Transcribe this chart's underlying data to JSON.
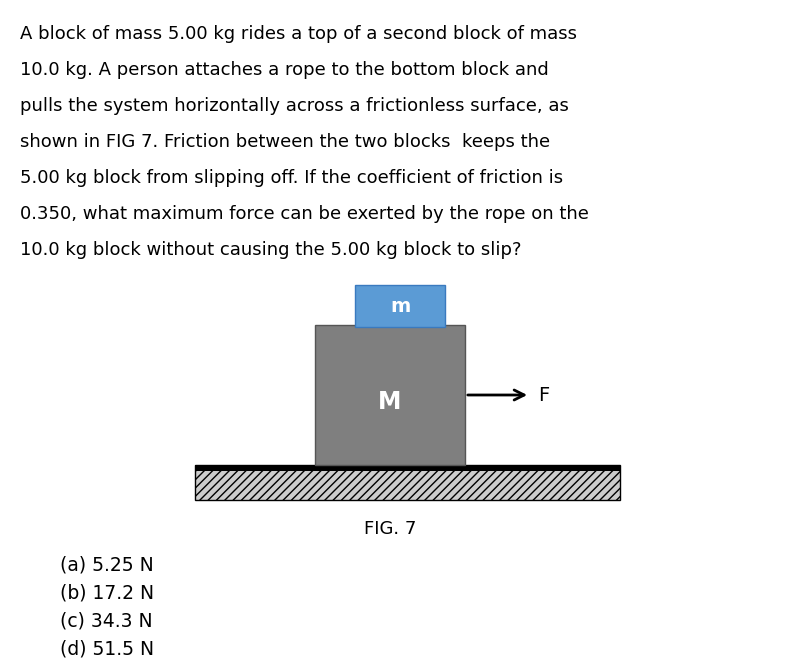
{
  "background_color": "#ffffff",
  "question_text": [
    "A block of mass 5.00 kg rides a top of a second block of mass",
    "10.0 kg. A person attaches a rope to the bottom block and",
    "pulls the system horizontally across a frictionless surface, as",
    "shown in FIG 7. Friction between the two blocks  keeps the",
    "5.00 kg block from slipping off. If the coefficient of friction is",
    "0.350, what maximum force can be exerted by the rope on the",
    "10.0 kg block without causing the 5.00 kg block to slip?"
  ],
  "answers": [
    "(a) 5.25 N",
    "(b) 17.2 N",
    "(c) 34.3 N",
    "(d) 51.5 N"
  ],
  "fig_label": "FIG. 7",
  "block_M_color": "#7f7f7f",
  "block_m_color": "#5b9bd5",
  "text_color": "#000000",
  "question_fontsize": 13.0,
  "answer_fontsize": 13.5,
  "label_fontsize": 14,
  "fig_label_fontsize": 13
}
